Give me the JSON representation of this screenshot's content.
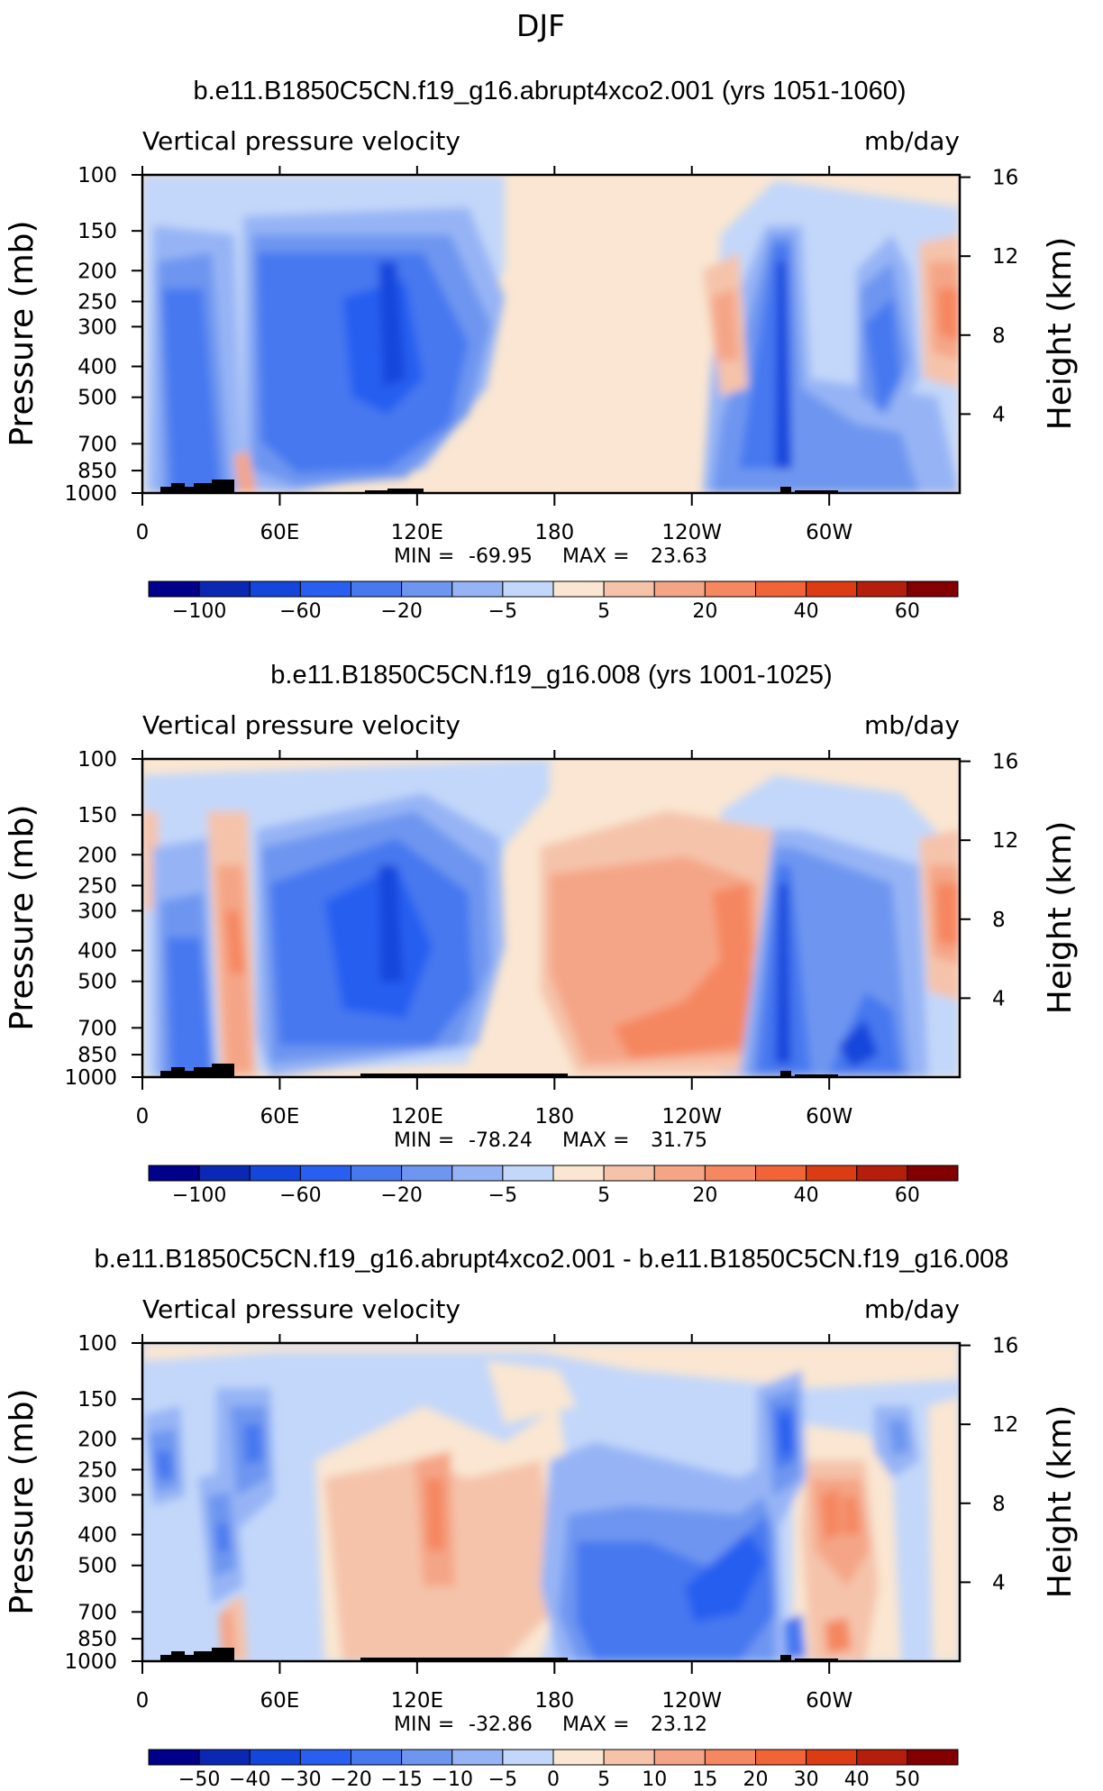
{
  "page_title": "DJF",
  "chart_data": [
    {
      "type": "contour",
      "title": "b.e11.B1850C5CN.f19_g16.abrupt4xco2.001 (yrs 1051-1060)",
      "left_label": "Vertical pressure velocity",
      "right_label": "mb/day",
      "ylabel": "Pressure (mb)",
      "ylabel_right": "Height (km)",
      "x_ticks": [
        "0",
        "60E",
        "120E",
        "180",
        "120W",
        "60W"
      ],
      "x_values": [
        0,
        60,
        120,
        180,
        240,
        300
      ],
      "xlim": [
        0,
        357
      ],
      "y_ticks": [
        "100",
        "150",
        "200",
        "250",
        "300",
        "400",
        "500",
        "700",
        "850",
        "1000"
      ],
      "y_values": [
        100,
        150,
        200,
        250,
        300,
        400,
        500,
        700,
        850,
        1000
      ],
      "ylim": [
        1000,
        100
      ],
      "height_ticks": [
        "16",
        "12",
        "8",
        "4"
      ],
      "height_values": [
        16,
        12,
        8,
        4
      ],
      "min_label": "MIN =",
      "min": "-69.95",
      "max_label": "MAX =",
      "max": "23.63",
      "colorbar": {
        "labels": [
          "-100",
          "-60",
          "-20",
          "-5",
          "5",
          "20",
          "40",
          "60"
        ],
        "colors": [
          "#00008b",
          "#0a28b4",
          "#1446dc",
          "#285ff0",
          "#4678f0",
          "#6e96f0",
          "#96b4f5",
          "#c3d7fa",
          "#fae6d2",
          "#f5c3aa",
          "#f5a587",
          "#f58761",
          "#f06437",
          "#dc3c14",
          "#b41e0a",
          "#820000"
        ]
      }
    },
    {
      "type": "contour",
      "title": "b.e11.B1850C5CN.f19_g16.008 (yrs 1001-1025)",
      "left_label": "Vertical pressure velocity",
      "right_label": "mb/day",
      "ylabel": "Pressure (mb)",
      "ylabel_right": "Height (km)",
      "x_ticks": [
        "0",
        "60E",
        "120E",
        "180",
        "120W",
        "60W"
      ],
      "x_values": [
        0,
        60,
        120,
        180,
        240,
        300
      ],
      "xlim": [
        0,
        357
      ],
      "y_ticks": [
        "100",
        "150",
        "200",
        "250",
        "300",
        "400",
        "500",
        "700",
        "850",
        "1000"
      ],
      "y_values": [
        100,
        150,
        200,
        250,
        300,
        400,
        500,
        700,
        850,
        1000
      ],
      "ylim": [
        1000,
        100
      ],
      "height_ticks": [
        "16",
        "12",
        "8",
        "4"
      ],
      "height_values": [
        16,
        12,
        8,
        4
      ],
      "min_label": "MIN =",
      "min": "-78.24",
      "max_label": "MAX =",
      "max": "31.75",
      "colorbar": {
        "labels": [
          "-100",
          "-60",
          "-20",
          "-5",
          "5",
          "20",
          "40",
          "60"
        ],
        "colors": [
          "#00008b",
          "#0a28b4",
          "#1446dc",
          "#285ff0",
          "#4678f0",
          "#6e96f0",
          "#96b4f5",
          "#c3d7fa",
          "#fae6d2",
          "#f5c3aa",
          "#f5a587",
          "#f58761",
          "#f06437",
          "#dc3c14",
          "#b41e0a",
          "#820000"
        ]
      }
    },
    {
      "type": "contour",
      "title": "b.e11.B1850C5CN.f19_g16.abrupt4xco2.001 - b.e11.B1850C5CN.f19_g16.008",
      "left_label": "Vertical pressure velocity",
      "right_label": "mb/day",
      "ylabel": "Pressure (mb)",
      "ylabel_right": "Height (km)",
      "x_ticks": [
        "0",
        "60E",
        "120E",
        "180",
        "120W",
        "60W"
      ],
      "x_values": [
        0,
        60,
        120,
        180,
        240,
        300
      ],
      "xlim": [
        0,
        357
      ],
      "y_ticks": [
        "100",
        "150",
        "200",
        "250",
        "300",
        "400",
        "500",
        "700",
        "850",
        "1000"
      ],
      "y_values": [
        100,
        150,
        200,
        250,
        300,
        400,
        500,
        700,
        850,
        1000
      ],
      "ylim": [
        1000,
        100
      ],
      "height_ticks": [
        "16",
        "12",
        "8",
        "4"
      ],
      "height_values": [
        16,
        12,
        8,
        4
      ],
      "min_label": "MIN =",
      "min": "-32.86",
      "max_label": "MAX =",
      "max": "23.12",
      "colorbar": {
        "labels": [
          "-50",
          "-40",
          "-30",
          "-20",
          "-15",
          "-10",
          "-5",
          "0",
          "5",
          "10",
          "15",
          "20",
          "30",
          "40",
          "50"
        ],
        "colors": [
          "#00008b",
          "#0a28b4",
          "#1446dc",
          "#285ff0",
          "#4678f0",
          "#6e96f0",
          "#96b4f5",
          "#c3d7fa",
          "#fae6d2",
          "#f5c3aa",
          "#f5a587",
          "#f58761",
          "#f06437",
          "#dc3c14",
          "#b41e0a",
          "#820000"
        ]
      }
    }
  ]
}
